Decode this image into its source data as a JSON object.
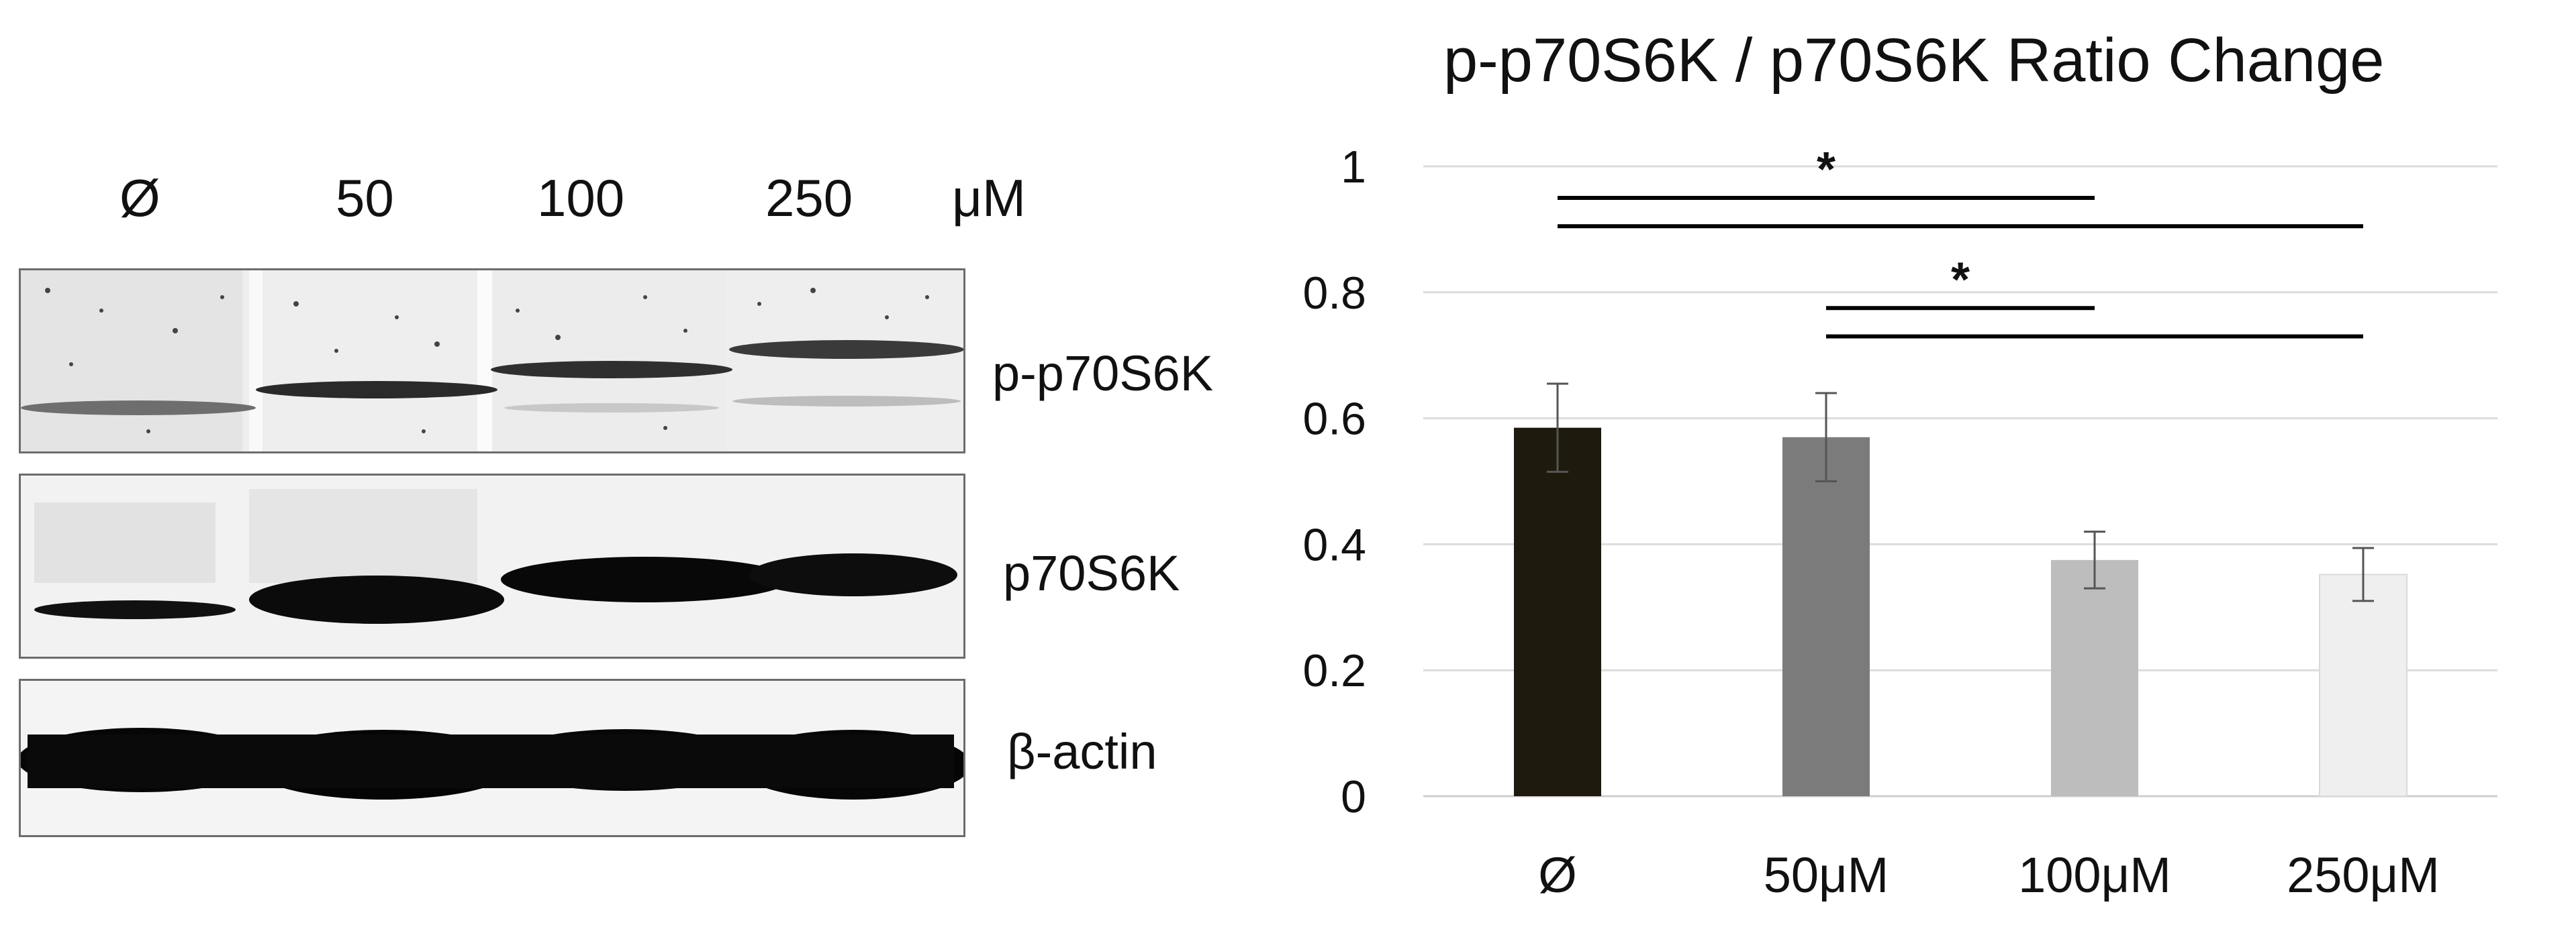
{
  "blot": {
    "lane_headers": [
      "Ø",
      "50",
      "100",
      "250"
    ],
    "unit": "μM",
    "rows": [
      {
        "label": "p-p70S6K"
      },
      {
        "label": "p70S6K"
      },
      {
        "label": "β-actin"
      }
    ]
  },
  "chart_data": {
    "type": "bar",
    "title": "p-p70S6K / p70S6K Ratio Change",
    "xlabel": "",
    "ylabel": "",
    "categories": [
      "Ø",
      "50μM",
      "100μM",
      "250μM"
    ],
    "values": [
      0.585,
      0.57,
      0.375,
      0.352
    ],
    "errors": [
      0.07,
      0.07,
      0.045,
      0.042
    ],
    "bar_colors": [
      "#1f1a0e",
      "#7b7b7b",
      "#bdbdbd",
      "#efefef"
    ],
    "ylim": [
      0,
      1
    ],
    "yticks": [
      0,
      0.2,
      0.4,
      0.6,
      0.8,
      1
    ],
    "ytick_labels": [
      "0",
      "0.2",
      "0.4",
      "0.6",
      "0.8",
      "1"
    ],
    "grid": true,
    "legend": "none",
    "significance": [
      {
        "from": 0,
        "to": 2,
        "level": 0.95,
        "label": "*"
      },
      {
        "from": 0,
        "to": 3,
        "level": 0.905,
        "label": ""
      },
      {
        "from": 1,
        "to": 2,
        "level": 0.775,
        "label": "*"
      },
      {
        "from": 1,
        "to": 3,
        "level": 0.73,
        "label": ""
      }
    ]
  }
}
